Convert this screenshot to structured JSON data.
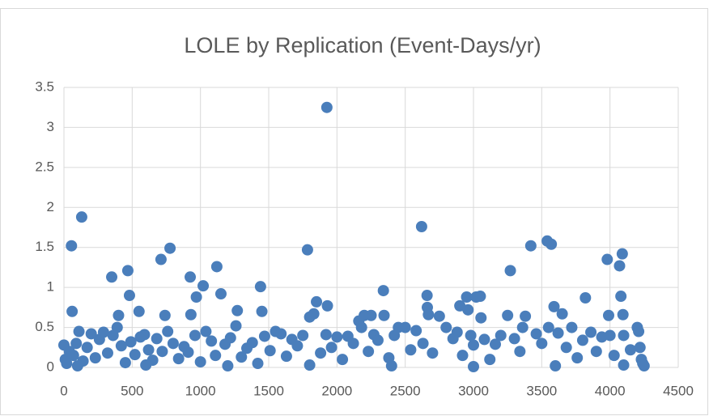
{
  "chart_data": {
    "type": "scatter",
    "title": "LOLE by Replication (Event-Days/yr)",
    "color": "#4a7ebb",
    "grid": true,
    "xlim": [
      0,
      4500
    ],
    "xticks": [
      0,
      500,
      1000,
      1500,
      2000,
      2500,
      3000,
      3500,
      4000,
      4500
    ],
    "ylim": [
      0,
      3.5
    ],
    "yticks": [
      0,
      0.5,
      1,
      1.5,
      2,
      2.5,
      3,
      3.5
    ],
    "x": [
      55,
      60,
      130,
      350,
      400,
      468,
      480,
      550,
      711,
      777,
      740,
      925,
      930,
      970,
      1020,
      1120,
      1150,
      1270,
      1440,
      1450,
      1784,
      1800,
      1830,
      1850,
      1926,
      1930,
      2340,
      2345,
      2200,
      2250,
      2620,
      2660,
      2662,
      2670,
      2750,
      2900,
      2950,
      2960,
      3020,
      3050,
      3055,
      3250,
      3270,
      3380,
      3420,
      3540,
      3570,
      3590,
      3650,
      3820,
      3980,
      3990,
      4070,
      4090,
      4080,
      4095,
      0,
      10,
      20,
      40,
      70,
      90,
      110,
      140,
      170,
      200,
      230,
      260,
      290,
      320,
      360,
      390,
      420,
      450,
      490,
      520,
      560,
      590,
      620,
      650,
      680,
      720,
      760,
      800,
      840,
      880,
      910,
      960,
      1000,
      1040,
      1080,
      1110,
      1180,
      1220,
      1260,
      1300,
      1340,
      1380,
      1420,
      1470,
      1510,
      1550,
      1590,
      1630,
      1670,
      1710,
      1750,
      1880,
      1920,
      1960,
      2000,
      2040,
      2080,
      2120,
      2160,
      2180,
      2230,
      2270,
      2300,
      2380,
      2420,
      2450,
      2500,
      2540,
      2580,
      2630,
      2700,
      2800,
      2850,
      2880,
      2920,
      2980,
      3000,
      3080,
      3120,
      3160,
      3200,
      3300,
      3340,
      3360,
      3460,
      3500,
      3550,
      3620,
      3680,
      3720,
      3760,
      3800,
      3860,
      3900,
      3940,
      4000,
      4030,
      4100,
      4150,
      4200,
      4210,
      4220,
      4230,
      4240,
      4250,
      100,
      600,
      1200,
      1800,
      2400,
      3000,
      3600,
      4100
    ],
    "values": [
      1.52,
      0.7,
      1.88,
      1.13,
      0.65,
      1.21,
      0.9,
      0.7,
      1.35,
      1.49,
      0.65,
      1.13,
      0.66,
      0.88,
      1.02,
      1.26,
      0.92,
      0.71,
      1.01,
      0.7,
      1.47,
      0.63,
      0.67,
      0.82,
      3.25,
      0.77,
      0.96,
      0.65,
      0.65,
      0.65,
      1.76,
      0.9,
      0.75,
      0.66,
      0.64,
      0.77,
      0.88,
      0.72,
      0.88,
      0.89,
      0.62,
      0.65,
      1.21,
      0.64,
      1.52,
      1.58,
      1.54,
      0.76,
      0.67,
      0.87,
      1.35,
      0.65,
      1.27,
      1.42,
      0.89,
      0.66,
      0.28,
      0.1,
      0.05,
      0.2,
      0.15,
      0.3,
      0.45,
      0.08,
      0.25,
      0.42,
      0.12,
      0.35,
      0.44,
      0.18,
      0.4,
      0.5,
      0.27,
      0.06,
      0.32,
      0.16,
      0.38,
      0.41,
      0.22,
      0.09,
      0.36,
      0.2,
      0.45,
      0.3,
      0.11,
      0.26,
      0.19,
      0.4,
      0.07,
      0.45,
      0.33,
      0.15,
      0.29,
      0.37,
      0.52,
      0.13,
      0.24,
      0.31,
      0.05,
      0.39,
      0.21,
      0.45,
      0.42,
      0.14,
      0.35,
      0.27,
      0.4,
      0.18,
      0.41,
      0.25,
      0.38,
      0.1,
      0.39,
      0.3,
      0.58,
      0.5,
      0.2,
      0.41,
      0.34,
      0.12,
      0.4,
      0.5,
      0.5,
      0.22,
      0.46,
      0.3,
      0.18,
      0.5,
      0.36,
      0.44,
      0.15,
      0.4,
      0.28,
      0.35,
      0.1,
      0.29,
      0.4,
      0.36,
      0.2,
      0.5,
      0.42,
      0.3,
      0.5,
      0.43,
      0.25,
      0.5,
      0.12,
      0.34,
      0.44,
      0.2,
      0.38,
      0.4,
      0.15,
      0.4,
      0.22,
      0.5,
      0.45,
      0.25,
      0.1,
      0.05,
      0.02,
      0.02,
      0.03,
      0.02,
      0.03,
      0.02,
      0.01,
      0.02,
      0.03
    ]
  }
}
